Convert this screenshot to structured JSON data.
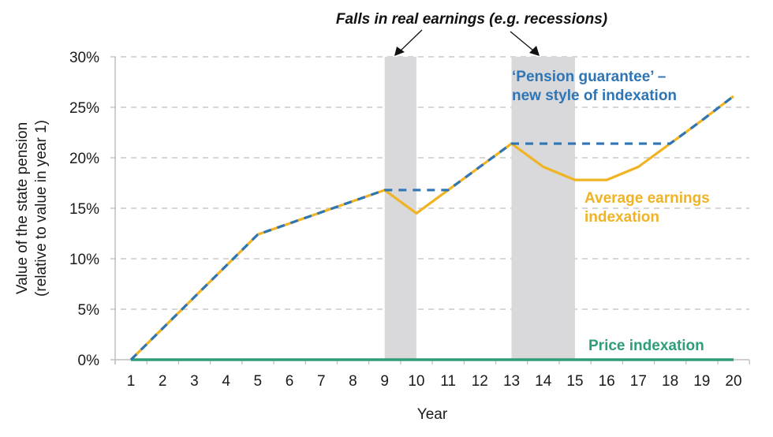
{
  "chart_data": {
    "type": "line",
    "title": "",
    "xlabel": "Year",
    "ylabel": "Value of the state pension (relative to value in year 1)",
    "ylabel_lines": [
      "Value of the state pension",
      "(relative to value in year 1)"
    ],
    "x": [
      1,
      2,
      3,
      4,
      5,
      6,
      7,
      8,
      9,
      10,
      11,
      12,
      13,
      14,
      15,
      16,
      17,
      18,
      19,
      20
    ],
    "xticks": [
      "1",
      "2",
      "3",
      "4",
      "5",
      "6",
      "7",
      "8",
      "9",
      "10",
      "11",
      "12",
      "13",
      "14",
      "15",
      "16",
      "17",
      "18",
      "19",
      "20"
    ],
    "yticks": [
      "0%",
      "5%",
      "10%",
      "15%",
      "20%",
      "25%",
      "30%"
    ],
    "ylim": [
      0,
      30
    ],
    "grid": true,
    "series": [
      {
        "name": "Pension guarantee – new style of indexation",
        "color": "#2e75b6",
        "style": "dashed",
        "values": [
          0,
          3.1,
          6.2,
          9.3,
          12.4,
          13.5,
          14.6,
          15.7,
          16.8,
          16.8,
          16.8,
          19.1,
          21.4,
          21.4,
          21.4,
          21.4,
          21.4,
          21.4,
          23.7,
          26.1
        ]
      },
      {
        "name": "Average earnings indexation",
        "color": "#f0b323",
        "style": "solid",
        "values": [
          0,
          3.1,
          6.2,
          9.3,
          12.4,
          13.5,
          14.6,
          15.7,
          16.8,
          14.5,
          16.8,
          19.1,
          21.4,
          19.1,
          17.8,
          17.8,
          19.1,
          21.4,
          23.7,
          26.1
        ]
      },
      {
        "name": "Price indexation",
        "color": "#2e9e77",
        "style": "solid",
        "values": [
          0,
          0,
          0,
          0,
          0,
          0,
          0,
          0,
          0,
          0,
          0,
          0,
          0,
          0,
          0,
          0,
          0,
          0,
          0,
          0
        ]
      }
    ],
    "shaded_regions": [
      {
        "from": 9,
        "to": 10,
        "color": "#d9d9db"
      },
      {
        "from": 13,
        "to": 15,
        "color": "#d9d9db"
      }
    ],
    "annotations": [
      {
        "text": "Falls in real earnings (e.g. recessions)",
        "style": "bold-italic"
      },
      {
        "text": "‘Pension guarantee’ –",
        "color": "#2e75b6"
      },
      {
        "text": "new style of indexation",
        "color": "#2e75b6"
      },
      {
        "text": "Average earnings",
        "color": "#f0b323"
      },
      {
        "text": "indexation",
        "color": "#f0b323"
      },
      {
        "text": "Price indexation",
        "color": "#2e9e77"
      }
    ]
  }
}
